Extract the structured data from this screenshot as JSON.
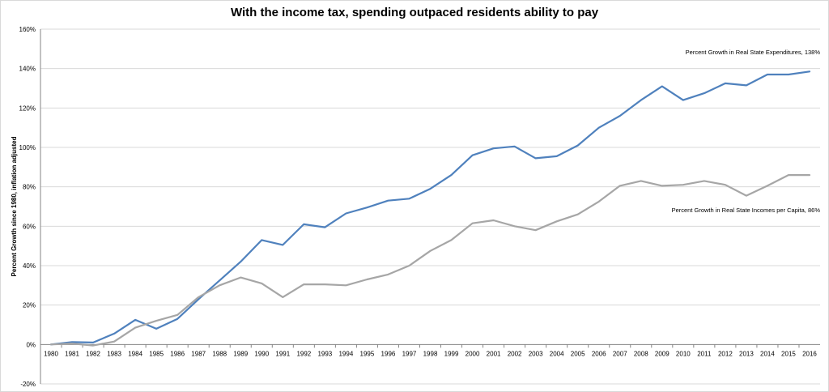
{
  "chart_data": {
    "type": "line",
    "title": "With the income tax, spending outpaced residents ability to pay",
    "xlabel": "",
    "ylabel": "Percent Growth since 1980, inflation adjusted",
    "ylim": [
      -20,
      160
    ],
    "yticks": [
      "-20%",
      "0%",
      "20%",
      "40%",
      "60%",
      "80%",
      "100%",
      "120%",
      "140%",
      "160%"
    ],
    "ytick_values": [
      -20,
      0,
      20,
      40,
      60,
      80,
      100,
      120,
      140,
      160
    ],
    "grid": true,
    "categories": [
      "1980",
      "1981",
      "1982",
      "1983",
      "1984",
      "1985",
      "1986",
      "1987",
      "1988",
      "1989",
      "1990",
      "1991",
      "1992",
      "1993",
      "1994",
      "1995",
      "1996",
      "1997",
      "1998",
      "1999",
      "2000",
      "2001",
      "2002",
      "2003",
      "2004",
      "2005",
      "2006",
      "2007",
      "2008",
      "2009",
      "2010",
      "2011",
      "2012",
      "2013",
      "2014",
      "2015",
      "2016"
    ],
    "series": [
      {
        "color": "#4f81bd",
        "values": [
          0,
          1.2,
          1,
          5.5,
          12.5,
          8,
          13,
          23,
          32.5,
          42,
          53,
          50.5,
          61,
          59.5,
          66.5,
          69.5,
          73,
          74,
          79,
          86,
          96,
          99.5,
          100.5,
          94.5,
          95.5,
          101,
          110,
          116,
          124,
          131,
          124,
          127.5,
          132.5,
          131.5,
          137,
          137,
          138.5
        ]
      },
      {
        "color": "#a6a6a6",
        "values": [
          0,
          0.5,
          -0.5,
          1.5,
          8.5,
          12,
          15,
          24,
          30,
          34,
          31,
          24,
          30.5,
          30.5,
          30,
          33,
          35.5,
          40,
          47.5,
          53,
          61.5,
          63,
          60,
          58,
          62.5,
          66,
          72.5,
          80.5,
          83,
          80.5,
          81,
          83,
          81,
          75.5,
          80.5,
          86,
          86
        ]
      }
    ],
    "annotations": [
      "Percent Growth in Real State Expenditures, 138%",
      "Percent Growth in Real State Incomes per Capita, 86%"
    ]
  }
}
